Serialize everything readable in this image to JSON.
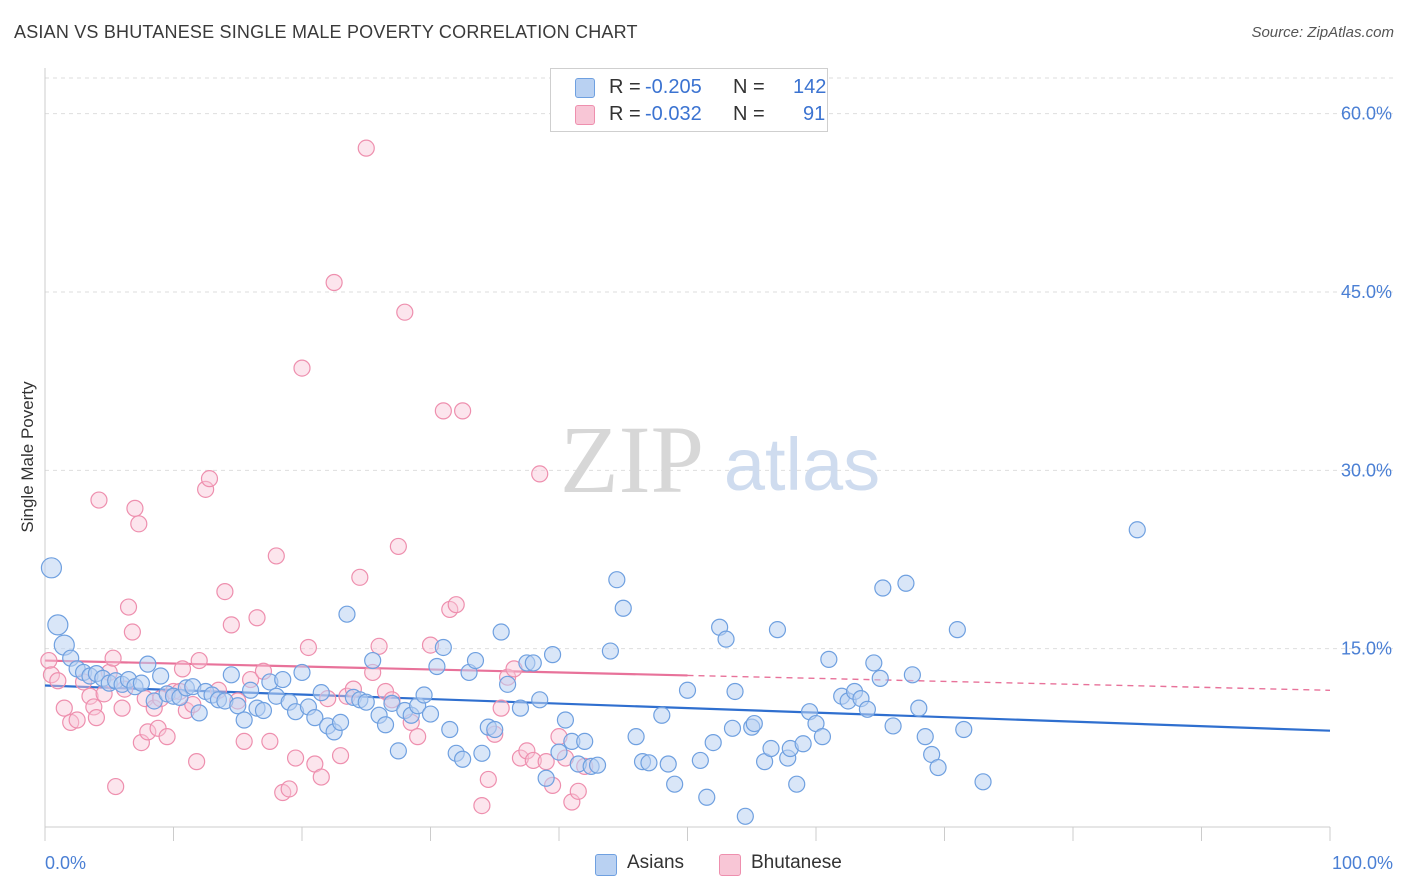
{
  "title": "ASIAN VS BHUTANESE SINGLE MALE POVERTY CORRELATION CHART",
  "source": "Source: ZipAtlas.com",
  "watermark": {
    "zip": "ZIP",
    "atlas": "atlas"
  },
  "legend": {
    "r_label": "R =",
    "n_label": "N =",
    "rows": [
      {
        "name": "Asians",
        "r": "-0.205",
        "n": "142",
        "color": "#6fa0e0",
        "fill": "#b9d1f2"
      },
      {
        "name": "Bhutanese",
        "r": "-0.032",
        "n": "91",
        "color": "#ee8fae",
        "fill": "#f8c6d6"
      }
    ]
  },
  "chart_data": {
    "type": "scatter",
    "title": "ASIAN VS BHUTANESE SINGLE MALE POVERTY CORRELATION CHART",
    "xlabel": "",
    "ylabel": "Single Male Poverty",
    "xlim": [
      0,
      100
    ],
    "ylim": [
      0,
      63
    ],
    "x_tick_labels": [
      "0.0%",
      "100.0%"
    ],
    "y_ticks": [
      15,
      30,
      45,
      60
    ],
    "y_tick_labels": [
      "15.0%",
      "30.0%",
      "45.0%",
      "60.0%"
    ],
    "grid": true,
    "series": [
      {
        "name": "Asians",
        "color": "#5b8fd8",
        "trend": {
          "x0": 0,
          "y0": 11.9,
          "x1": 100,
          "y1": 8.1,
          "style": "solid"
        },
        "points": [
          [
            0.5,
            21.8
          ],
          [
            1,
            17
          ],
          [
            1.5,
            15.3
          ],
          [
            2,
            14.2
          ],
          [
            2.5,
            13.3
          ],
          [
            3,
            13
          ],
          [
            3.5,
            12.7
          ],
          [
            4,
            12.9
          ],
          [
            4.5,
            12.5
          ],
          [
            5,
            12.1
          ],
          [
            5.5,
            12.3
          ],
          [
            6,
            12
          ],
          [
            6.5,
            12.4
          ],
          [
            7,
            11.8
          ],
          [
            7.5,
            12.1
          ],
          [
            8,
            13.7
          ],
          [
            8.5,
            10.6
          ],
          [
            9,
            12.7
          ],
          [
            9.5,
            11.2
          ],
          [
            10,
            11
          ],
          [
            10.5,
            10.9
          ],
          [
            11,
            11.7
          ],
          [
            11.5,
            11.8
          ],
          [
            12,
            9.6
          ],
          [
            12.5,
            11.4
          ],
          [
            13,
            11.1
          ],
          [
            13.5,
            10.7
          ],
          [
            14,
            10.6
          ],
          [
            14.5,
            12.8
          ],
          [
            15,
            10.2
          ],
          [
            15.5,
            9
          ],
          [
            16,
            11.5
          ],
          [
            16.5,
            10
          ],
          [
            17,
            9.8
          ],
          [
            17.5,
            12.2
          ],
          [
            18,
            11
          ],
          [
            18.5,
            12.4
          ],
          [
            19,
            10.5
          ],
          [
            19.5,
            9.7
          ],
          [
            20,
            13
          ],
          [
            20.5,
            10.1
          ],
          [
            21,
            9.2
          ],
          [
            21.5,
            11.3
          ],
          [
            22,
            8.5
          ],
          [
            22.5,
            8
          ],
          [
            23,
            8.8
          ],
          [
            23.5,
            17.9
          ],
          [
            24,
            10.9
          ],
          [
            24.5,
            10.7
          ],
          [
            25,
            10.5
          ],
          [
            25.5,
            14
          ],
          [
            26,
            9.4
          ],
          [
            26.5,
            8.6
          ],
          [
            27,
            10.4
          ],
          [
            27.5,
            6.4
          ],
          [
            28,
            9.8
          ],
          [
            28.5,
            9.4
          ],
          [
            29,
            10.2
          ],
          [
            29.5,
            11.1
          ],
          [
            30,
            9.5
          ],
          [
            30.5,
            13.5
          ],
          [
            31,
            15.1
          ],
          [
            31.5,
            8.2
          ],
          [
            32,
            6.2
          ],
          [
            32.5,
            5.7
          ],
          [
            33,
            13
          ],
          [
            33.5,
            14
          ],
          [
            34,
            6.2
          ],
          [
            34.5,
            8.4
          ],
          [
            35,
            8.2
          ],
          [
            35.5,
            16.4
          ],
          [
            36,
            12
          ],
          [
            37,
            10
          ],
          [
            37.5,
            13.8
          ],
          [
            38,
            13.8
          ],
          [
            38.5,
            10.7
          ],
          [
            39,
            4.1
          ],
          [
            39.5,
            14.5
          ],
          [
            40,
            6.3
          ],
          [
            40.5,
            9
          ],
          [
            41,
            7.2
          ],
          [
            41.5,
            5.3
          ],
          [
            42,
            7.2
          ],
          [
            42.5,
            5.1
          ],
          [
            43,
            5.2
          ],
          [
            44,
            14.8
          ],
          [
            44.5,
            20.8
          ],
          [
            45,
            18.4
          ],
          [
            46,
            7.6
          ],
          [
            46.5,
            5.5
          ],
          [
            47,
            5.4
          ],
          [
            48,
            9.4
          ],
          [
            48.5,
            5.3
          ],
          [
            49,
            3.6
          ],
          [
            50,
            11.5
          ],
          [
            51,
            5.6
          ],
          [
            51.5,
            2.5
          ],
          [
            52,
            7.1
          ],
          [
            52.5,
            16.8
          ],
          [
            53,
            15.8
          ],
          [
            53.5,
            8.3
          ],
          [
            53.7,
            11.4
          ],
          [
            54.5,
            0.9
          ],
          [
            55,
            8.4
          ],
          [
            55.2,
            8.7
          ],
          [
            56,
            5.5
          ],
          [
            56.5,
            6.6
          ],
          [
            57,
            16.6
          ],
          [
            57.8,
            5.8
          ],
          [
            58,
            6.6
          ],
          [
            58.5,
            3.6
          ],
          [
            59,
            7
          ],
          [
            59.5,
            9.7
          ],
          [
            60,
            8.7
          ],
          [
            60.5,
            7.6
          ],
          [
            61,
            14.1
          ],
          [
            62,
            11
          ],
          [
            62.5,
            10.6
          ],
          [
            63,
            11.4
          ],
          [
            63.5,
            10.8
          ],
          [
            64,
            9.9
          ],
          [
            64.5,
            13.8
          ],
          [
            65,
            12.5
          ],
          [
            65.2,
            20.1
          ],
          [
            66,
            8.5
          ],
          [
            67,
            20.5
          ],
          [
            67.5,
            12.8
          ],
          [
            68,
            10
          ],
          [
            68.5,
            7.6
          ],
          [
            69,
            6.1
          ],
          [
            69.5,
            5
          ],
          [
            71,
            16.6
          ],
          [
            71.5,
            8.2
          ],
          [
            73,
            3.8
          ],
          [
            85,
            25
          ]
        ]
      },
      {
        "name": "Bhutanese",
        "color": "#ec7fa1",
        "trend": {
          "x0": 0,
          "y0": 14,
          "x1": 100,
          "y1": 11.5,
          "style": "solid-to-dashed",
          "solid_until": 50
        },
        "points": [
          [
            0.3,
            14
          ],
          [
            0.5,
            12.8
          ],
          [
            1,
            12.3
          ],
          [
            1.5,
            10
          ],
          [
            2,
            8.8
          ],
          [
            2.5,
            9
          ],
          [
            3,
            12.2
          ],
          [
            3.5,
            11
          ],
          [
            3.8,
            10.1
          ],
          [
            4,
            9.2
          ],
          [
            4.2,
            27.5
          ],
          [
            4.6,
            11.2
          ],
          [
            5,
            13
          ],
          [
            5.3,
            14.2
          ],
          [
            5.5,
            3.4
          ],
          [
            6,
            10
          ],
          [
            6.2,
            11.6
          ],
          [
            6.5,
            18.5
          ],
          [
            6.8,
            16.4
          ],
          [
            7,
            26.8
          ],
          [
            7.3,
            25.5
          ],
          [
            7.5,
            7.1
          ],
          [
            7.8,
            10.8
          ],
          [
            8,
            8
          ],
          [
            8.5,
            10
          ],
          [
            8.8,
            8.3
          ],
          [
            9,
            10.8
          ],
          [
            9.5,
            7.6
          ],
          [
            10,
            11.4
          ],
          [
            10.5,
            11.4
          ],
          [
            10.7,
            13.3
          ],
          [
            11,
            9.8
          ],
          [
            11.5,
            10.3
          ],
          [
            11.8,
            5.5
          ],
          [
            12,
            14
          ],
          [
            12.5,
            28.4
          ],
          [
            12.8,
            29.3
          ],
          [
            13.5,
            11.5
          ],
          [
            14,
            19.8
          ],
          [
            14.5,
            17
          ],
          [
            15,
            10.6
          ],
          [
            15.5,
            7.2
          ],
          [
            16,
            12.4
          ],
          [
            16.5,
            17.6
          ],
          [
            17,
            13.1
          ],
          [
            17.5,
            7.2
          ],
          [
            18,
            22.8
          ],
          [
            18.5,
            2.9
          ],
          [
            19,
            3.2
          ],
          [
            19.5,
            5.8
          ],
          [
            20,
            38.6
          ],
          [
            20.5,
            15.1
          ],
          [
            21,
            5.3
          ],
          [
            21.5,
            4.2
          ],
          [
            22,
            10.8
          ],
          [
            22.5,
            45.8
          ],
          [
            23,
            6
          ],
          [
            23.5,
            11
          ],
          [
            24,
            11.6
          ],
          [
            24.5,
            21
          ],
          [
            25,
            57.1
          ],
          [
            25.5,
            13
          ],
          [
            26,
            15.2
          ],
          [
            26.5,
            11.4
          ],
          [
            27,
            10.7
          ],
          [
            27.5,
            23.6
          ],
          [
            28,
            43.3
          ],
          [
            28.5,
            8.8
          ],
          [
            29,
            7.6
          ],
          [
            30,
            15.3
          ],
          [
            31,
            35
          ],
          [
            31.5,
            18.3
          ],
          [
            32,
            18.7
          ],
          [
            32.5,
            35
          ],
          [
            34,
            1.8
          ],
          [
            34.5,
            4
          ],
          [
            35,
            7.8
          ],
          [
            35.5,
            10
          ],
          [
            36,
            12.6
          ],
          [
            36.5,
            13.3
          ],
          [
            37,
            5.8
          ],
          [
            37.5,
            6.4
          ],
          [
            38,
            5.6
          ],
          [
            38.5,
            29.7
          ],
          [
            39,
            5.5
          ],
          [
            39.5,
            3.5
          ],
          [
            40,
            7.6
          ],
          [
            40.5,
            5.8
          ],
          [
            41,
            2.1
          ],
          [
            41.5,
            3
          ],
          [
            42,
            5.1
          ]
        ]
      }
    ]
  },
  "bottom_legend": [
    {
      "label": "Asians"
    },
    {
      "label": "Bhutanese"
    }
  ]
}
